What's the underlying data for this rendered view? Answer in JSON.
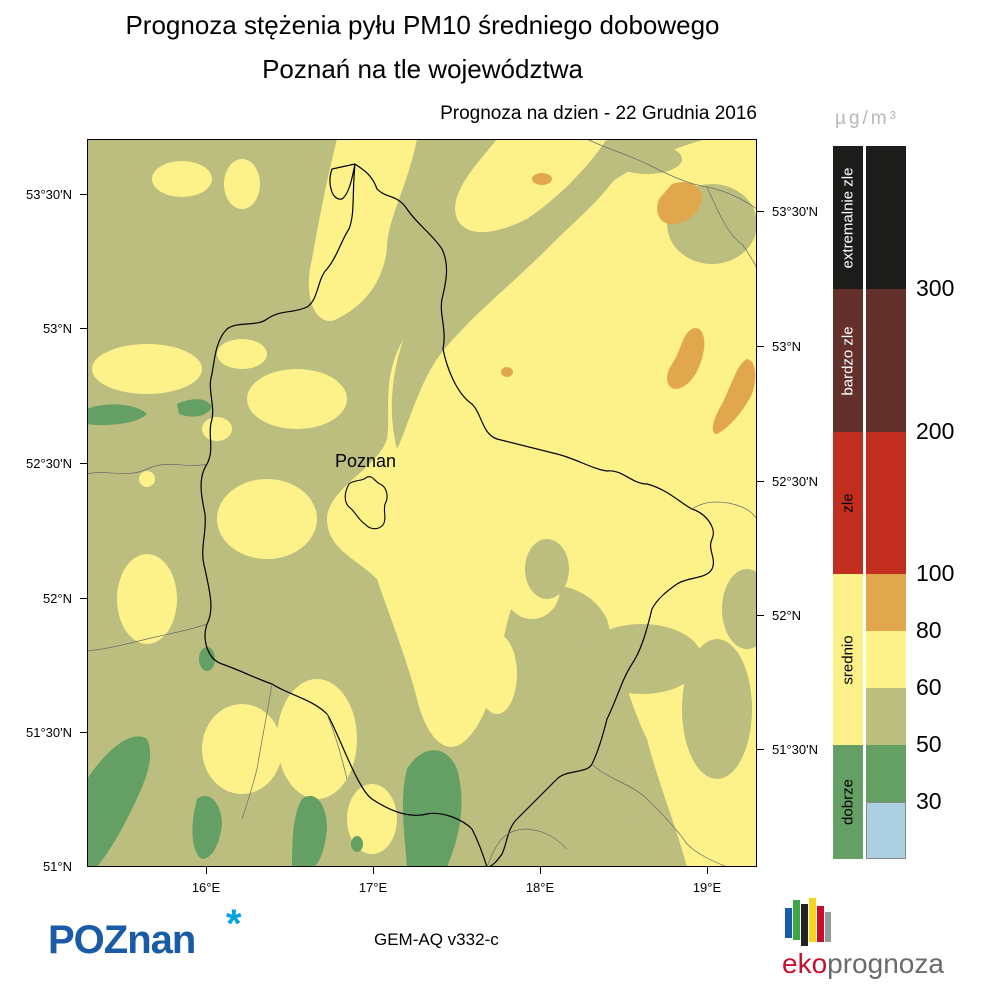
{
  "title": {
    "line1": "Prognoza stężenia pyłu PM10 średniego dobowego",
    "line2": "Poznań na tle województwa"
  },
  "forecast_date": "Prognoza na dzien -  22 Grudnia 2016",
  "map": {
    "city_label": "Poznan",
    "lat_labels_left": [
      "53°30'N",
      "53°N",
      "52°30'N",
      "52°N",
      "51°30'N",
      "51°N"
    ],
    "lat_labels_right": [
      "53°30'N",
      "53°N",
      "52°30'N",
      "52°N",
      "51°30'N"
    ],
    "lon_labels": [
      "16°E",
      "17°E",
      "18°E",
      "19°E"
    ]
  },
  "legend": {
    "unit": "µg/m³",
    "categories": [
      {
        "label": "extremalnie zle",
        "color": "#1c1c1a"
      },
      {
        "label": "bardzo zle",
        "color": "#63302b"
      },
      {
        "label": "zle",
        "color": "#c12e1f"
      },
      {
        "label": "srednio",
        "color": "#fdf189"
      },
      {
        "label": "dobrze",
        "color": "#64a063"
      }
    ],
    "colors": [
      {
        "color": "#1c1c1a"
      },
      {
        "color": "#63302b"
      },
      {
        "color": "#c12e1f"
      },
      {
        "color": "#e1a74c"
      },
      {
        "color": "#fdf189"
      },
      {
        "color": "#bcbe80"
      },
      {
        "color": "#64a063"
      },
      {
        "color": "#abd1e2"
      }
    ],
    "thresholds": [
      "300",
      "200",
      "100",
      "80",
      "60",
      "50",
      "30"
    ]
  },
  "footer": {
    "logo_left": "POZnan",
    "logo_left_star": "*",
    "model": "GEM-AQ v332-c",
    "logo_right_a": "eko",
    "logo_right_b": "prognoza"
  },
  "map_colors": {
    "dobrze": "#64a063",
    "olive": "#bcbe80",
    "yellow": "#fdf189",
    "orange": "#e1a74c"
  }
}
